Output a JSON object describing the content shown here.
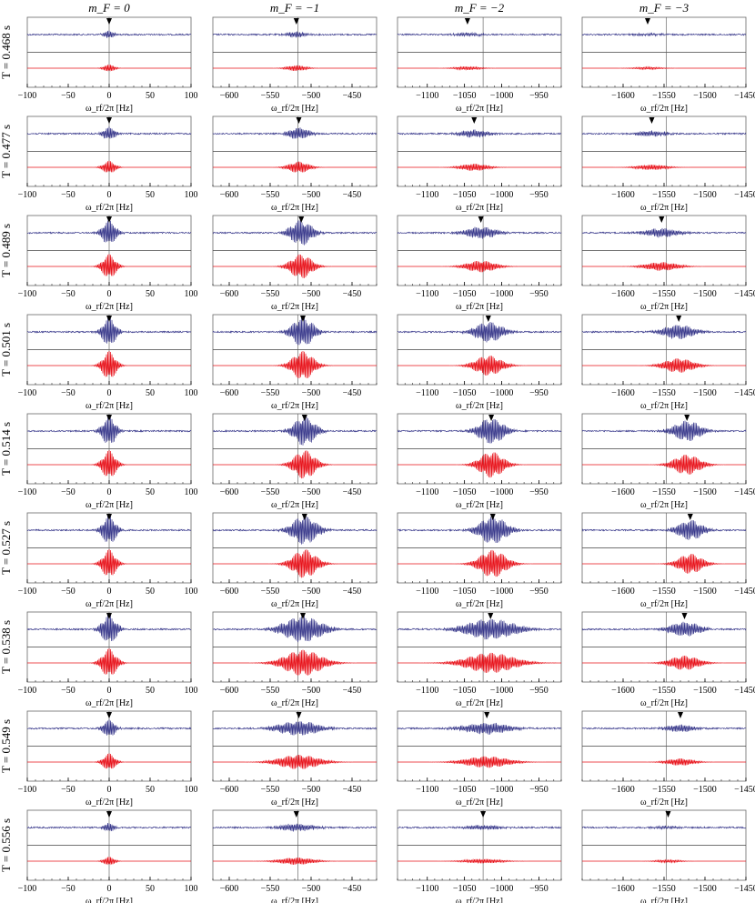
{
  "figure": {
    "column_headers": [
      "m_F = 0",
      "m_F = −1",
      "m_F = −2",
      "m_F = −3"
    ],
    "row_labels": [
      "T = 0.468 s",
      "T = 0.477 s",
      "T = 0.489 s",
      "T = 0.501 s",
      "T = 0.514 s",
      "T = 0.527 s",
      "T = 0.538 s",
      "T = 0.549 s",
      "T = 0.556 s"
    ],
    "xlabel": "ω_rf/2π [Hz]"
  },
  "colors": {
    "measured": "#3a3a8c",
    "theory": "#e8121a",
    "axis": "#000000",
    "guide": "#555555"
  },
  "chart_data": {
    "type": "line",
    "description_keys": "grid of spectra; rows = interrogation time T, columns = magnetic sublevel mF; each panel shows a measured (blue) and calculated (red) Ramsey-like fringe pattern vs rf frequency",
    "columns": [
      {
        "mF": "0",
        "header": "m_F = 0",
        "xlim": [
          -100,
          100
        ],
        "ticks": [
          -100,
          -50,
          0,
          50,
          100
        ],
        "tick_labels": [
          "−100",
          "−50",
          "0",
          "50",
          "100"
        ],
        "ref_line": 0
      },
      {
        "mF": "-1",
        "header": "m_F = −1",
        "xlim": [
          -620,
          -420
        ],
        "ticks": [
          -600,
          -550,
          -500,
          -450
        ],
        "tick_labels": [
          "−600",
          "−550",
          "−500",
          "−450"
        ],
        "ref_line": -516
      },
      {
        "mF": "-2",
        "header": "m_F = −2",
        "xlim": [
          -1140,
          -920
        ],
        "ticks": [
          -1100,
          -1050,
          -1000,
          -950
        ],
        "tick_labels": [
          "−1100",
          "−1050",
          "−1000",
          "−950"
        ],
        "ref_line": -1025
      },
      {
        "mF": "-3",
        "header": "m_F = −3",
        "xlim": [
          -1650,
          -1450
        ],
        "ticks": [
          -1600,
          -1550,
          -1500,
          -1450
        ],
        "tick_labels": [
          "−1600",
          "−1550",
          "−1500",
          "−1450"
        ],
        "ref_line": -1547
      }
    ],
    "rows": [
      {
        "T": 0.468,
        "label": "T = 0.468 s",
        "centers": [
          0,
          -518,
          -1046,
          -1570
        ],
        "amplitude": [
          0.25,
          0.2,
          0.12,
          0.08
        ],
        "width": [
          8,
          14,
          20,
          20
        ]
      },
      {
        "T": 0.477,
        "label": "T = 0.477 s",
        "centers": [
          0,
          -515,
          -1037,
          -1565
        ],
        "amplitude": [
          0.45,
          0.4,
          0.25,
          0.18
        ],
        "width": [
          9,
          15,
          22,
          22
        ]
      },
      {
        "T": 0.489,
        "label": "T = 0.489 s",
        "centers": [
          0,
          -512,
          -1028,
          -1553
        ],
        "amplitude": [
          0.85,
          0.85,
          0.4,
          0.3
        ],
        "width": [
          10,
          16,
          24,
          24
        ]
      },
      {
        "T": 0.501,
        "label": "T = 0.501 s",
        "centers": [
          0,
          -510,
          -1018,
          -1532
        ],
        "amplitude": [
          1.0,
          1.0,
          0.7,
          0.5
        ],
        "width": [
          10,
          16,
          22,
          22
        ]
      },
      {
        "T": 0.514,
        "label": "T = 0.514 s",
        "centers": [
          0,
          -508,
          -1014,
          -1522
        ],
        "amplitude": [
          1.0,
          1.0,
          0.9,
          0.7
        ],
        "width": [
          10,
          16,
          20,
          20
        ]
      },
      {
        "T": 0.527,
        "label": "T = 0.527 s",
        "centers": [
          0,
          -508,
          -1012,
          -1518
        ],
        "amplitude": [
          1.0,
          1.0,
          0.95,
          0.7
        ],
        "width": [
          10,
          18,
          22,
          18
        ]
      },
      {
        "T": 0.538,
        "label": "T = 0.538 s",
        "centers": [
          0,
          -510,
          -1015,
          -1525
        ],
        "amplitude": [
          1.0,
          0.9,
          0.7,
          0.5
        ],
        "width": [
          11,
          28,
          40,
          22
        ]
      },
      {
        "T": 0.549,
        "label": "T = 0.549 s",
        "centers": [
          0,
          -515,
          -1020,
          -1530
        ],
        "amplitude": [
          0.6,
          0.5,
          0.4,
          0.25
        ],
        "width": [
          9,
          30,
          35,
          20
        ]
      },
      {
        "T": 0.556,
        "label": "T = 0.556 s",
        "centers": [
          0,
          -518,
          -1025,
          -1545
        ],
        "amplitude": [
          0.3,
          0.25,
          0.15,
          0.1
        ],
        "width": [
          8,
          25,
          30,
          18
        ]
      }
    ]
  }
}
